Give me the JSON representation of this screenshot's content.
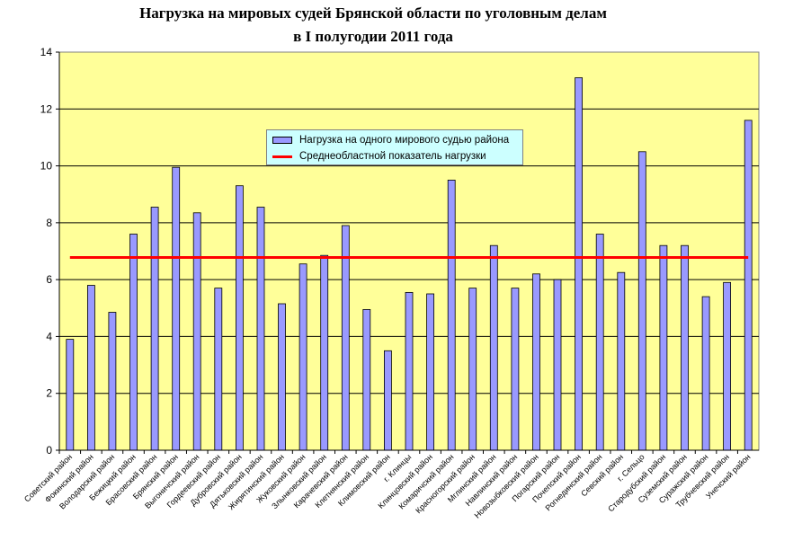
{
  "title_lines": [
    "Нагрузка на мировых судей Брянской области по уголовным делам",
    "в I полугодии 2011 года"
  ],
  "legend": {
    "bar_label": "Нагрузка на одного мирового судью района",
    "line_label": "Среднеобластной показатель нагрузки"
  },
  "colors": {
    "plot_background": "#ffff99",
    "bar_fill": "#9999ff",
    "average_line": "#ff0000",
    "legend_background": "#ccffff"
  },
  "chart_data": {
    "type": "bar",
    "title": "Нагрузка на мировых судей Брянской области по уголовным делам в I полугодии 2011 года",
    "ylim": [
      0,
      14
    ],
    "yticks": [
      0,
      2,
      4,
      6,
      8,
      10,
      12,
      14
    ],
    "grid": true,
    "legend_position": "top-center",
    "categories": [
      "Советский район",
      "Фокинский район",
      "Володарский район",
      "Бежицкий район",
      "Брасовский район",
      "Брянский район",
      "Выгоничский район",
      "Гордеевский район",
      "Дубровский район",
      "Дятьковский район",
      "Жирятинский район",
      "Жуковский район",
      "Злынковский район",
      "Карачевский район",
      "Клетнянский район",
      "Климовский район",
      "г. Клинцы",
      "Клинцовский район",
      "Комаричский район",
      "Красногорский район",
      "Мглинский район",
      "Навлинский район",
      "Новозыбковский район",
      "Погарский район",
      "Почепский район",
      "Рогнединский район",
      "Севский район",
      "г. Сельцо",
      "Стародубский район",
      "Суземский район",
      "Суражский район",
      "Трубчевский район",
      "Унечский район"
    ],
    "series": [
      {
        "name": "Нагрузка на одного мирового судью района",
        "type": "bar",
        "values": [
          3.9,
          5.8,
          4.85,
          7.6,
          8.55,
          9.95,
          8.35,
          5.7,
          9.3,
          8.55,
          5.15,
          6.55,
          6.85,
          7.9,
          4.95,
          3.5,
          5.55,
          5.5,
          9.5,
          5.7,
          7.2,
          5.7,
          6.2,
          6.0,
          13.1,
          7.6,
          6.25,
          10.5,
          7.2,
          7.2,
          5.4,
          5.9,
          11.6
        ]
      },
      {
        "name": "Среднеобластной показатель нагрузки",
        "type": "line",
        "value": 6.78
      }
    ]
  }
}
